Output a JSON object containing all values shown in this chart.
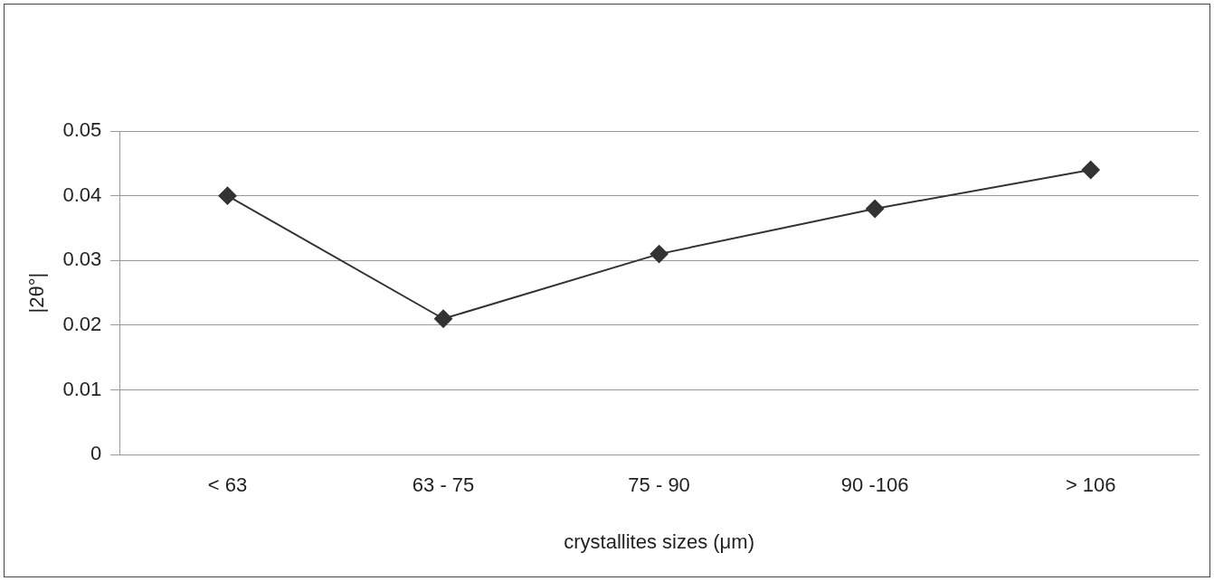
{
  "chart_data": {
    "type": "line",
    "xlabel": "crystallites sizes (μm)",
    "ylabel": "|2θ°|",
    "categories": [
      "< 63",
      "63 - 75",
      "75 - 90",
      "90 -106",
      "> 106"
    ],
    "series": [
      {
        "color": "#333333",
        "values": [
          0.04,
          0.021,
          0.031,
          0.038,
          0.044
        ]
      }
    ],
    "ylim": [
      0,
      0.05
    ],
    "yticks": [
      0,
      0.01,
      0.02,
      0.03,
      0.04,
      0.05
    ],
    "grid": "y",
    "legend": false,
    "marker": "diamond",
    "line_style": "solid"
  }
}
